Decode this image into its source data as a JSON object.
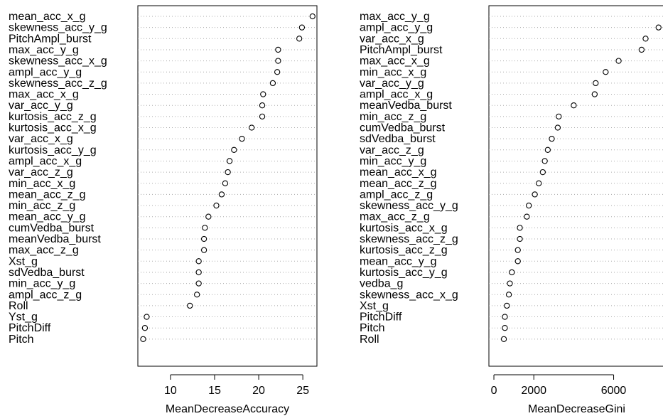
{
  "chart_data": [
    {
      "type": "scatter",
      "xlabel": "MeanDecreaseAccuracy",
      "xlim": [
        6.3,
        26.6
      ],
      "xticks": [
        10,
        15,
        20,
        25
      ],
      "grid": "horizontal dotted",
      "categories": [
        "mean_acc_x_g",
        "skewness_acc_y_g",
        "PitchAmpl_burst",
        "max_acc_y_g",
        "skewness_acc_x_g",
        "ampl_acc_y_g",
        "skewness_acc_z_g",
        "max_acc_x_g",
        "var_acc_y_g",
        "kurtosis_acc_z_g",
        "kurtosis_acc_x_g",
        "var_acc_x_g",
        "kurtosis_acc_y_g",
        "ampl_acc_x_g",
        "var_acc_z_g",
        "min_acc_x_g",
        "mean_acc_z_g",
        "min_acc_z_g",
        "mean_acc_y_g",
        "cumVedba_burst",
        "meanVedba_burst",
        "max_acc_z_g",
        "Xst_g",
        "sdVedba_burst",
        "min_acc_y_g",
        "ampl_acc_z_g",
        "Roll",
        "Yst_g",
        "PitchDiff",
        "Pitch"
      ],
      "values": [
        26.1,
        24.9,
        24.6,
        22.2,
        22.2,
        22.1,
        21.6,
        20.5,
        20.4,
        20.4,
        19.2,
        18.1,
        17.2,
        16.7,
        16.5,
        16.2,
        15.8,
        15.2,
        14.3,
        13.9,
        13.8,
        13.8,
        13.2,
        13.2,
        13.2,
        13.0,
        12.2,
        7.3,
        7.1,
        6.9
      ]
    },
    {
      "type": "scatter",
      "xlabel": "MeanDecreaseGini",
      "xlim": [
        -250,
        8900
      ],
      "xticks": [
        0,
        2000,
        6000
      ],
      "grid": "horizontal dotted",
      "categories": [
        "max_acc_y_g",
        "ampl_acc_y_g",
        "var_acc_x_g",
        "PitchAmpl_burst",
        "max_acc_x_g",
        "min_acc_x_g",
        "var_acc_y_g",
        "ampl_acc_x_g",
        "meanVedba_burst",
        "min_acc_z_g",
        "cumVedba_burst",
        "sdVedba_burst",
        "var_acc_z_g",
        "min_acc_y_g",
        "mean_acc_x_g",
        "mean_acc_z_g",
        "ampl_acc_z_g",
        "skewness_acc_y_g",
        "max_acc_z_g",
        "kurtosis_acc_x_g",
        "skewness_acc_z_g",
        "kurtosis_acc_z_g",
        "mean_acc_y_g",
        "kurtosis_acc_y_g",
        "vedba_g",
        "skewness_acc_x_g",
        "Xst_g",
        "PitchDiff",
        "Pitch",
        "Roll"
      ],
      "values": [
        8800,
        8250,
        7600,
        7400,
        6250,
        5600,
        5100,
        5050,
        4000,
        3250,
        3200,
        2900,
        2700,
        2550,
        2450,
        2250,
        2050,
        1750,
        1650,
        1300,
        1300,
        1200,
        1200,
        900,
        800,
        750,
        650,
        550,
        550,
        500
      ]
    }
  ]
}
